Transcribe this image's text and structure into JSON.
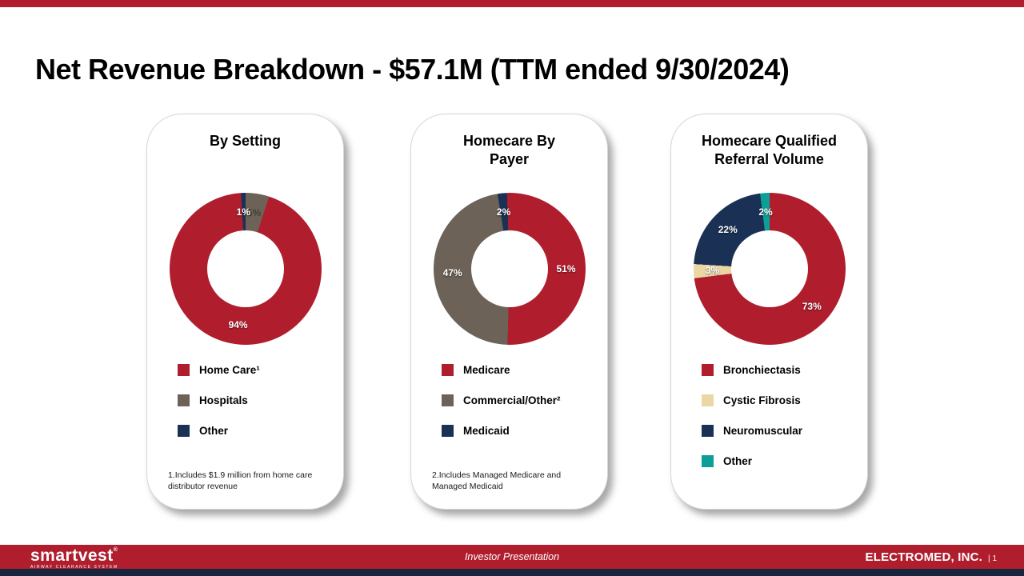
{
  "slide": {
    "title": "Net Revenue Breakdown - $57.1M (TTM ended 9/30/2024)"
  },
  "colors": {
    "brand_red": "#B01E2E",
    "taupe": "#6C6257",
    "navy": "#1A3155",
    "tan": "#EBD7A4",
    "teal": "#0C9F98",
    "bottom_strip": "#17253F"
  },
  "chart_data": [
    {
      "type": "pie",
      "subtype": "donut",
      "title": "By Setting",
      "start_angle": 0,
      "slices": [
        {
          "label": "Hospitals",
          "value": 5,
          "color": "#6C6257",
          "label_color": "#45413a"
        },
        {
          "label": "Home Care",
          "value": 94,
          "color": "#B01E2E",
          "label_color": "#ffffff"
        },
        {
          "label": "Other",
          "value": 1,
          "color": "#1A3155",
          "label_color": "#ffffff"
        }
      ],
      "legend": [
        {
          "label": "Home Care¹",
          "color": "#B01E2E"
        },
        {
          "label": "Hospitals",
          "color": "#6C6257"
        },
        {
          "label": "Other",
          "color": "#1A3155"
        }
      ],
      "footnote": "1.Includes $1.9 million from home care distributor revenue"
    },
    {
      "type": "pie",
      "subtype": "donut",
      "title": "Homecare By Payer",
      "start_angle": -2,
      "slices": [
        {
          "label": "Medicare",
          "value": 51,
          "color": "#B01E2E",
          "label_color": "#ffffff"
        },
        {
          "label": "Commercial/Other",
          "value": 47,
          "color": "#6C6257",
          "label_color": "#ffffff"
        },
        {
          "label": "Medicaid",
          "value": 2,
          "color": "#1A3155",
          "label_color": "#ffffff"
        }
      ],
      "legend": [
        {
          "label": "Medicare",
          "color": "#B01E2E"
        },
        {
          "label": "Commercial/Other²",
          "color": "#6C6257"
        },
        {
          "label": "Medicaid",
          "color": "#1A3155"
        }
      ],
      "footnote": "2.Includes Managed Medicare and Managed Medicaid"
    },
    {
      "type": "pie",
      "subtype": "donut",
      "title": "Homecare Qualified Referral Volume",
      "start_angle": 0,
      "slices": [
        {
          "label": "Bronchiectasis",
          "value": 73,
          "color": "#B01E2E",
          "label_color": "#ffffff"
        },
        {
          "label": "Cystic Fibrosis",
          "value": 3,
          "color": "#EBD7A4",
          "label_color": "#ffffff"
        },
        {
          "label": "Neuromuscular",
          "value": 22,
          "color": "#1A3155",
          "label_color": "#ffffff"
        },
        {
          "label": "Other",
          "value": 2,
          "color": "#0C9F98",
          "label_color": "#ffffff"
        }
      ],
      "legend": [
        {
          "label": "Bronchiectasis",
          "color": "#B01E2E"
        },
        {
          "label": "Cystic Fibrosis",
          "color": "#EBD7A4"
        },
        {
          "label": "Neuromuscular",
          "color": "#1A3155"
        },
        {
          "label": "Other",
          "color": "#0C9F98"
        }
      ],
      "footnote": ""
    }
  ],
  "footer": {
    "logo_text": "smartvest",
    "logo_reg": "®",
    "logo_sub": "AIRWAY CLEARANCE SYSTEM",
    "center_text": "Investor Presentation",
    "company": "ELECTROMED, INC.",
    "divider": "|",
    "page_number": "1"
  }
}
